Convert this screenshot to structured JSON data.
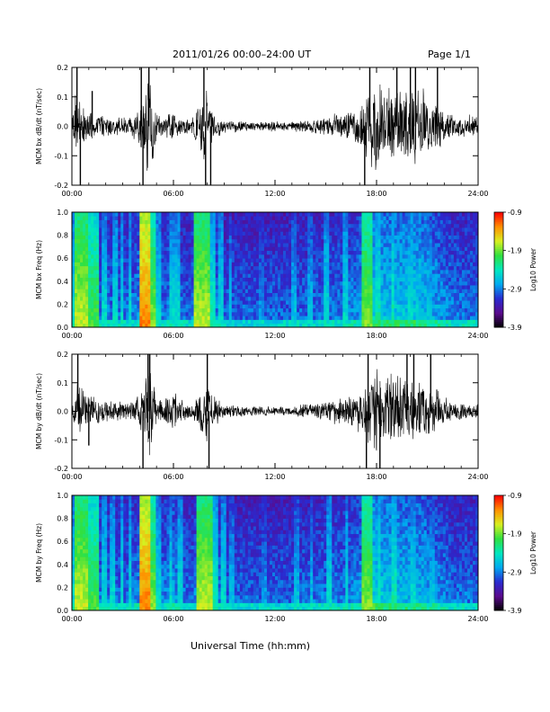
{
  "header": {
    "title": "2011/01/26  00:00–24:00 UT",
    "page": "Page 1/1"
  },
  "xaxis_title": "Universal Time (hh:mm)",
  "colors": {
    "trace": "#000000",
    "colormap": [
      "#000000",
      "#5a0a8c",
      "#2a2ad0",
      "#00a8f0",
      "#00e8c0",
      "#30e040",
      "#d8f020",
      "#ff9000",
      "#ff0000"
    ]
  },
  "chart_data": [
    {
      "type": "line",
      "ylabel": "MCM bx dB/dt (nT/sec)",
      "xlim": [
        0,
        24
      ],
      "ylim": [
        -0.2,
        0.2
      ],
      "xticks": [
        "00:00",
        "06:00",
        "12:00",
        "18:00",
        "24:00"
      ],
      "yticks": [
        "0.2",
        "0.1",
        "0.0",
        "-0.1",
        "-0.2"
      ],
      "ytick_values": [
        0.2,
        0.1,
        0.0,
        -0.1,
        -0.2
      ],
      "grid": false,
      "activity": [
        {
          "x": 0.0,
          "amp": 0.05
        },
        {
          "x": 0.3,
          "amp": 0.12
        },
        {
          "x": 0.8,
          "amp": 0.05
        },
        {
          "x": 1.5,
          "amp": 0.04
        },
        {
          "x": 2.5,
          "amp": 0.03
        },
        {
          "x": 3.5,
          "amp": 0.03
        },
        {
          "x": 4.2,
          "amp": 0.08
        },
        {
          "x": 4.5,
          "amp": 0.2
        },
        {
          "x": 5.0,
          "amp": 0.04
        },
        {
          "x": 5.5,
          "amp": 0.03
        },
        {
          "x": 5.9,
          "amp": 0.06
        },
        {
          "x": 6.3,
          "amp": 0.03
        },
        {
          "x": 7.0,
          "amp": 0.02
        },
        {
          "x": 7.9,
          "amp": 0.12
        },
        {
          "x": 8.2,
          "amp": 0.06
        },
        {
          "x": 9.0,
          "amp": 0.02
        },
        {
          "x": 11.0,
          "amp": 0.015
        },
        {
          "x": 13.0,
          "amp": 0.015
        },
        {
          "x": 15.0,
          "amp": 0.03
        },
        {
          "x": 16.5,
          "amp": 0.05
        },
        {
          "x": 17.2,
          "amp": 0.08
        },
        {
          "x": 17.7,
          "amp": 0.14
        },
        {
          "x": 18.5,
          "amp": 0.12
        },
        {
          "x": 19.5,
          "amp": 0.12
        },
        {
          "x": 20.5,
          "amp": 0.13
        },
        {
          "x": 21.3,
          "amp": 0.09
        },
        {
          "x": 22.5,
          "amp": 0.04
        },
        {
          "x": 24.0,
          "amp": 0.03
        }
      ],
      "spikes": [
        {
          "x": 0.3,
          "y": 0.2
        },
        {
          "x": 0.5,
          "y": -0.2
        },
        {
          "x": 1.2,
          "y": 0.12
        },
        {
          "x": 4.1,
          "y": 0.2
        },
        {
          "x": 4.2,
          "y": -0.2
        },
        {
          "x": 4.55,
          "y": 0.2
        },
        {
          "x": 7.8,
          "y": 0.2
        },
        {
          "x": 7.9,
          "y": -0.2
        },
        {
          "x": 8.2,
          "y": -0.2
        },
        {
          "x": 17.3,
          "y": -0.2
        },
        {
          "x": 17.6,
          "y": 0.2
        },
        {
          "x": 19.2,
          "y": 0.2
        },
        {
          "x": 20.0,
          "y": 0.2
        },
        {
          "x": 20.3,
          "y": 0.2
        },
        {
          "x": 21.6,
          "y": 0.2
        }
      ]
    },
    {
      "type": "heatmap",
      "ylabel": "MCM bx Freq (Hz)",
      "xlim": [
        0,
        24
      ],
      "ylim": [
        0.0,
        1.0
      ],
      "xticks": [
        "00:00",
        "06:00",
        "12:00",
        "18:00",
        "24:00"
      ],
      "yticks": [
        "1.0",
        "0.8",
        "0.6",
        "0.4",
        "0.2",
        "0.0"
      ],
      "ytick_values": [
        1.0,
        0.8,
        0.6,
        0.4,
        0.2,
        0.0
      ],
      "colorbar": {
        "label": "Log10 Power",
        "range": [
          -3.9,
          -0.9
        ],
        "ticks": [
          "-0.9",
          "-1.9",
          "-2.9",
          "-3.9"
        ],
        "tick_values": [
          -0.9,
          -1.9,
          -2.9,
          -3.9
        ]
      },
      "bands": [
        {
          "x0": 0.0,
          "x1": 0.1,
          "level": 0.45
        },
        {
          "x0": 0.2,
          "x1": 0.8,
          "level": 0.7
        },
        {
          "x0": 1.0,
          "x1": 1.5,
          "level": 0.6
        },
        {
          "x0": 1.8,
          "x1": 2.0,
          "level": 0.45
        },
        {
          "x0": 2.5,
          "x1": 2.6,
          "level": 0.45
        },
        {
          "x0": 2.9,
          "x1": 3.0,
          "level": 0.45
        },
        {
          "x0": 3.4,
          "x1": 3.5,
          "level": 0.45
        },
        {
          "x0": 4.15,
          "x1": 4.6,
          "level": 0.85
        },
        {
          "x0": 4.6,
          "x1": 4.9,
          "level": 0.65
        },
        {
          "x0": 5.1,
          "x1": 5.2,
          "level": 0.45
        },
        {
          "x0": 5.9,
          "x1": 6.0,
          "level": 0.45
        },
        {
          "x0": 6.2,
          "x1": 6.3,
          "level": 0.45
        },
        {
          "x0": 7.3,
          "x1": 8.1,
          "level": 0.7
        },
        {
          "x0": 8.3,
          "x1": 8.4,
          "level": 0.5
        },
        {
          "x0": 8.8,
          "x1": 8.9,
          "level": 0.45
        },
        {
          "x0": 9.3,
          "x1": 9.4,
          "level": 0.4
        },
        {
          "x0": 11.2,
          "x1": 11.3,
          "level": 0.35
        },
        {
          "x0": 13.1,
          "x1": 13.2,
          "level": 0.4
        },
        {
          "x0": 14.0,
          "x1": 14.1,
          "level": 0.4
        },
        {
          "x0": 15.0,
          "x1": 15.1,
          "level": 0.45
        },
        {
          "x0": 16.1,
          "x1": 16.2,
          "level": 0.45
        },
        {
          "x0": 17.2,
          "x1": 17.6,
          "level": 0.65
        },
        {
          "x0": 18.0,
          "x1": 18.1,
          "level": 0.5
        },
        {
          "x0": 18.9,
          "x1": 19.0,
          "level": 0.5
        },
        {
          "x0": 20.0,
          "x1": 20.1,
          "level": 0.45
        },
        {
          "x0": 21.1,
          "x1": 21.2,
          "level": 0.4
        }
      ]
    },
    {
      "type": "line",
      "ylabel": "MCM by dB/dt (nT/sec)",
      "xlim": [
        0,
        24
      ],
      "ylim": [
        -0.2,
        0.2
      ],
      "xticks": [
        "00:00",
        "06:00",
        "12:00",
        "18:00",
        "24:00"
      ],
      "yticks": [
        "0.2",
        "0.1",
        "0.0",
        "-0.1",
        "-0.2"
      ],
      "ytick_values": [
        0.2,
        0.1,
        0.0,
        -0.1,
        -0.2
      ],
      "grid": false,
      "activity": [
        {
          "x": 0.0,
          "amp": 0.03
        },
        {
          "x": 0.4,
          "amp": 0.1
        },
        {
          "x": 0.8,
          "amp": 0.06
        },
        {
          "x": 1.5,
          "amp": 0.04
        },
        {
          "x": 2.5,
          "amp": 0.03
        },
        {
          "x": 3.5,
          "amp": 0.03
        },
        {
          "x": 4.3,
          "amp": 0.08
        },
        {
          "x": 4.6,
          "amp": 0.18
        },
        {
          "x": 5.0,
          "amp": 0.03
        },
        {
          "x": 5.5,
          "amp": 0.05
        },
        {
          "x": 6.0,
          "amp": 0.08
        },
        {
          "x": 6.4,
          "amp": 0.04
        },
        {
          "x": 7.0,
          "amp": 0.02
        },
        {
          "x": 8.0,
          "amp": 0.12
        },
        {
          "x": 8.4,
          "amp": 0.05
        },
        {
          "x": 9.0,
          "amp": 0.02
        },
        {
          "x": 11.0,
          "amp": 0.015
        },
        {
          "x": 13.0,
          "amp": 0.015
        },
        {
          "x": 15.0,
          "amp": 0.035
        },
        {
          "x": 16.5,
          "amp": 0.05
        },
        {
          "x": 17.3,
          "amp": 0.08
        },
        {
          "x": 17.8,
          "amp": 0.15
        },
        {
          "x": 18.5,
          "amp": 0.12
        },
        {
          "x": 19.5,
          "amp": 0.11
        },
        {
          "x": 20.5,
          "amp": 0.1
        },
        {
          "x": 21.4,
          "amp": 0.07
        },
        {
          "x": 22.5,
          "amp": 0.03
        },
        {
          "x": 24.0,
          "amp": 0.025
        }
      ],
      "spikes": [
        {
          "x": 0.35,
          "y": 0.2
        },
        {
          "x": 1.0,
          "y": -0.12
        },
        {
          "x": 4.2,
          "y": -0.2
        },
        {
          "x": 4.5,
          "y": 0.2
        },
        {
          "x": 4.6,
          "y": 0.2
        },
        {
          "x": 8.0,
          "y": 0.2
        },
        {
          "x": 8.1,
          "y": -0.2
        },
        {
          "x": 17.4,
          "y": -0.2
        },
        {
          "x": 17.5,
          "y": 0.2
        },
        {
          "x": 18.2,
          "y": -0.2
        },
        {
          "x": 19.8,
          "y": 0.2
        },
        {
          "x": 20.2,
          "y": 0.2
        },
        {
          "x": 21.2,
          "y": 0.2
        }
      ]
    },
    {
      "type": "heatmap",
      "ylabel": "MCM by Freq (Hz)",
      "xlim": [
        0,
        24
      ],
      "ylim": [
        0.0,
        1.0
      ],
      "xticks": [
        "00:00",
        "06:00",
        "12:00",
        "18:00",
        "24:00"
      ],
      "yticks": [
        "1.0",
        "0.8",
        "0.6",
        "0.4",
        "0.2",
        "0.0"
      ],
      "ytick_values": [
        1.0,
        0.8,
        0.6,
        0.4,
        0.2,
        0.0
      ],
      "colorbar": {
        "label": "Log10 Power",
        "range": [
          -3.9,
          -0.9
        ],
        "ticks": [
          "-0.9",
          "-1.9",
          "-2.9",
          "-3.9"
        ],
        "tick_values": [
          -0.9,
          -1.9,
          -2.9,
          -3.9
        ]
      },
      "bands": [
        {
          "x0": 0.0,
          "x1": 0.1,
          "level": 0.45
        },
        {
          "x0": 0.2,
          "x1": 0.8,
          "level": 0.7
        },
        {
          "x0": 1.0,
          "x1": 1.5,
          "level": 0.6
        },
        {
          "x0": 1.8,
          "x1": 2.0,
          "level": 0.45
        },
        {
          "x0": 2.4,
          "x1": 2.5,
          "level": 0.45
        },
        {
          "x0": 2.9,
          "x1": 3.0,
          "level": 0.45
        },
        {
          "x0": 3.4,
          "x1": 3.5,
          "level": 0.45
        },
        {
          "x0": 4.1,
          "x1": 4.6,
          "level": 0.85
        },
        {
          "x0": 4.6,
          "x1": 4.9,
          "level": 0.65
        },
        {
          "x0": 5.1,
          "x1": 5.2,
          "level": 0.45
        },
        {
          "x0": 5.8,
          "x1": 5.9,
          "level": 0.45
        },
        {
          "x0": 6.4,
          "x1": 6.5,
          "level": 0.45
        },
        {
          "x0": 7.4,
          "x1": 8.2,
          "level": 0.7
        },
        {
          "x0": 8.4,
          "x1": 8.5,
          "level": 0.5
        },
        {
          "x0": 8.9,
          "x1": 9.0,
          "level": 0.45
        },
        {
          "x0": 9.4,
          "x1": 9.5,
          "level": 0.4
        },
        {
          "x0": 11.3,
          "x1": 11.4,
          "level": 0.35
        },
        {
          "x0": 13.2,
          "x1": 13.3,
          "level": 0.4
        },
        {
          "x0": 14.1,
          "x1": 14.2,
          "level": 0.4
        },
        {
          "x0": 15.1,
          "x1": 15.2,
          "level": 0.45
        },
        {
          "x0": 16.2,
          "x1": 16.3,
          "level": 0.45
        },
        {
          "x0": 17.2,
          "x1": 17.7,
          "level": 0.65
        },
        {
          "x0": 18.1,
          "x1": 18.2,
          "level": 0.5
        },
        {
          "x0": 19.0,
          "x1": 19.1,
          "level": 0.5
        },
        {
          "x0": 20.1,
          "x1": 20.2,
          "level": 0.45
        },
        {
          "x0": 21.2,
          "x1": 21.3,
          "level": 0.4
        }
      ]
    }
  ]
}
